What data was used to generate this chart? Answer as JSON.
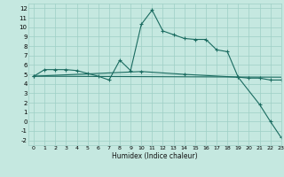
{
  "xlabel": "Humidex (Indice chaleur)",
  "xlim": [
    -0.5,
    23
  ],
  "ylim": [
    -2.5,
    12.5
  ],
  "xticks": [
    0,
    1,
    2,
    3,
    4,
    5,
    6,
    7,
    8,
    9,
    10,
    11,
    12,
    13,
    14,
    15,
    16,
    17,
    18,
    19,
    20,
    21,
    22,
    23
  ],
  "yticks": [
    -2,
    -1,
    0,
    1,
    2,
    3,
    4,
    5,
    6,
    7,
    8,
    9,
    10,
    11,
    12
  ],
  "background_color": "#c5e8e0",
  "grid_color": "#9ecfc5",
  "line_color": "#1a6b60",
  "line1_x": [
    0,
    1,
    2,
    3,
    4,
    5,
    6,
    7,
    8,
    9,
    10,
    11,
    12,
    13,
    14,
    15,
    16,
    17,
    18,
    19,
    20,
    21,
    22,
    23
  ],
  "line1_y": [
    4.8,
    5.5,
    5.5,
    5.5,
    5.4,
    5.1,
    4.8,
    4.4,
    6.5,
    5.4,
    10.3,
    11.8,
    9.6,
    9.2,
    8.8,
    8.7,
    8.7,
    7.6,
    7.4,
    4.7,
    4.6,
    4.6,
    4.4,
    4.4
  ],
  "line2_x": [
    0,
    23
  ],
  "line2_y": [
    4.8,
    4.7
  ],
  "line3_x": [
    0,
    10,
    14,
    19,
    21,
    22,
    23
  ],
  "line3_y": [
    4.8,
    5.3,
    5.0,
    4.7,
    1.8,
    0.0,
    -1.7
  ],
  "marker": "+"
}
